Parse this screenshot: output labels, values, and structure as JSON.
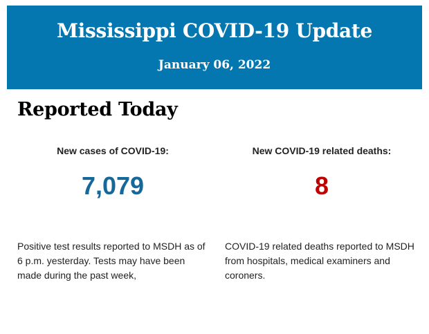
{
  "header": {
    "title": "Mississippi COVID-19 Update",
    "date": "January 06, 2022",
    "background_color": "#0477b0"
  },
  "section": {
    "heading": "Reported Today"
  },
  "stats": {
    "cases": {
      "label": "New cases of COVID-19:",
      "value": "7,079",
      "color": "#16689a",
      "description": "Positive test results reported to MSDH as of 6 p.m. yesterday. Tests may have been made during the past week,"
    },
    "deaths": {
      "label": "New COVID-19 related deaths:",
      "value": "8",
      "color": "#c00000",
      "description": "COVID-19 related deaths reported to MSDH from hospitals, medical examiners and coroners."
    }
  }
}
